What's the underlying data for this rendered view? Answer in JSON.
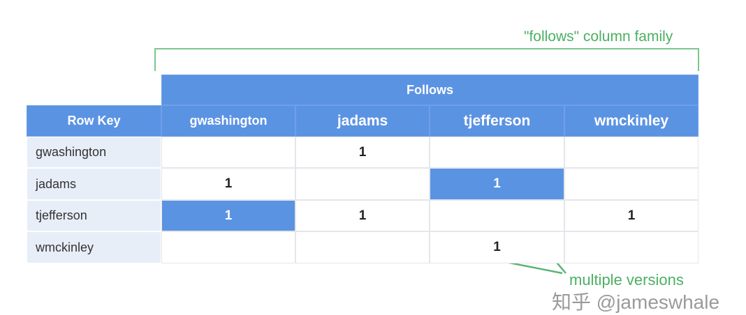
{
  "family_label": "\"follows\" column family",
  "family_header": "Follows",
  "row_key_header": "Row Key",
  "columns": [
    "gwashington",
    "jadams",
    "tjefferson",
    "wmckinley"
  ],
  "rows": [
    {
      "key": "gwashington",
      "cells": [
        "",
        "1",
        "",
        ""
      ]
    },
    {
      "key": "jadams",
      "cells": [
        "1",
        "",
        "1",
        ""
      ]
    },
    {
      "key": "tjefferson",
      "cells": [
        "1",
        "1",
        "",
        "1"
      ]
    },
    {
      "key": "wmckinley",
      "cells": [
        "",
        "",
        "1",
        ""
      ]
    }
  ],
  "highlighted_cells": [
    [
      1,
      2
    ],
    [
      2,
      0
    ]
  ],
  "annotation": "multiple versions",
  "watermark": "知乎 @jameswhale",
  "colors": {
    "header": "#5b93e3",
    "row_key_bg": "#e8eef8",
    "annotation": "#4caf63"
  }
}
